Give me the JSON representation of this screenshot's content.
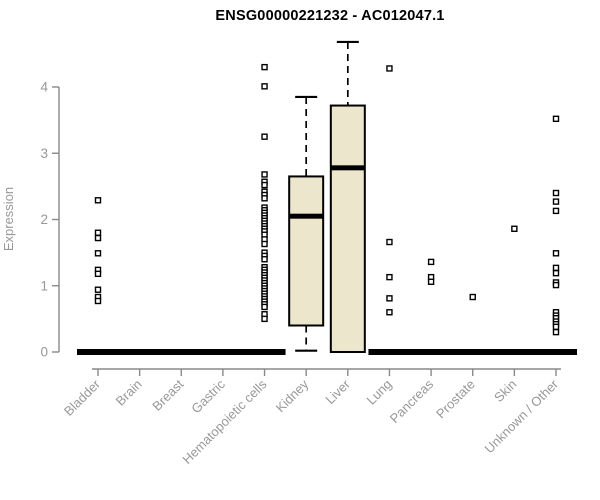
{
  "chart_data": {
    "type": "boxplot",
    "title": "ENSG00000221232 - AC012047.1",
    "xlabel": "",
    "ylabel": "Expression",
    "ylim": [
      0,
      4.8
    ],
    "yticks": [
      0,
      1,
      2,
      3,
      4
    ],
    "grid": false,
    "legend": "none",
    "categories": [
      "Bladder",
      "Brain",
      "Breast",
      "Gastric",
      "Hematopoietic cells",
      "Kidney",
      "Liver",
      "Lung",
      "Pancreas",
      "Prostate",
      "Skin",
      "Unknown / Other"
    ],
    "series": [
      {
        "name": "Bladder",
        "median": 0,
        "q1": 0,
        "q3": 0,
        "whisker_low": 0,
        "whisker_high": 0,
        "outliers": [
          2.29,
          1.8,
          1.72,
          1.49,
          1.24,
          1.18,
          0.94,
          0.83,
          0.77
        ]
      },
      {
        "name": "Brain",
        "median": 0,
        "q1": 0,
        "q3": 0,
        "whisker_low": 0,
        "whisker_high": 0,
        "outliers": []
      },
      {
        "name": "Breast",
        "median": 0,
        "q1": 0,
        "q3": 0,
        "whisker_low": 0,
        "whisker_high": 0,
        "outliers": []
      },
      {
        "name": "Gastric",
        "median": 0,
        "q1": 0,
        "q3": 0,
        "whisker_low": 0,
        "whisker_high": 0,
        "outliers": []
      },
      {
        "name": "Hematopoietic cells",
        "median": 0,
        "q1": 0,
        "q3": 0,
        "whisker_low": 0,
        "whisker_high": 0,
        "outliers": [
          4.3,
          4.01,
          3.25,
          2.68,
          2.57,
          2.52,
          2.42,
          2.37,
          2.32,
          2.18,
          2.14,
          2.1,
          2.06,
          2.02,
          1.98,
          1.94,
          1.9,
          1.86,
          1.82,
          1.77,
          1.7,
          1.63,
          1.5,
          1.45,
          1.4,
          1.28,
          1.24,
          1.2,
          1.16,
          1.12,
          1.08,
          1.04,
          1.0,
          0.96,
          0.92,
          0.88,
          0.84,
          0.8,
          0.76,
          0.72,
          0.68,
          0.57,
          0.5
        ]
      },
      {
        "name": "Kidney",
        "median": 2.05,
        "q1": 0.4,
        "q3": 2.65,
        "whisker_low": 0.02,
        "whisker_high": 3.85,
        "outliers": []
      },
      {
        "name": "Liver",
        "median": 2.78,
        "q1": 0.0,
        "q3": 3.72,
        "whisker_low": null,
        "whisker_high": 4.68,
        "outliers": []
      },
      {
        "name": "Lung",
        "median": 0,
        "q1": 0,
        "q3": 0,
        "whisker_low": 0,
        "whisker_high": 0,
        "outliers": [
          4.28,
          1.66,
          1.13,
          0.81,
          0.6
        ]
      },
      {
        "name": "Pancreas",
        "median": 0,
        "q1": 0,
        "q3": 0,
        "whisker_low": 0,
        "whisker_high": 0,
        "outliers": [
          1.36,
          1.13,
          1.06
        ]
      },
      {
        "name": "Prostate",
        "median": 0,
        "q1": 0,
        "q3": 0,
        "whisker_low": 0,
        "whisker_high": 0,
        "outliers": [
          0.83
        ]
      },
      {
        "name": "Skin",
        "median": 0,
        "q1": 0,
        "q3": 0,
        "whisker_low": 0,
        "whisker_high": 0,
        "outliers": [
          1.86
        ]
      },
      {
        "name": "Unknown / Other",
        "median": 0,
        "q1": 0,
        "q3": 0,
        "whisker_low": 0,
        "whisker_high": 0,
        "outliers": [
          3.52,
          2.4,
          2.27,
          2.13,
          1.49,
          1.27,
          1.19,
          1.05,
          1.01,
          0.6,
          0.55,
          0.51,
          0.46,
          0.42,
          0.38,
          0.3
        ]
      }
    ],
    "colors": {
      "box_fill": "#ece6cd",
      "box_border": "#000000",
      "median": "#000000",
      "outlier_stroke": "#000000",
      "outlier_fill": "#ffffff",
      "axis": "#898989",
      "tick_label": "#989898",
      "title": "#000000",
      "background": "#ffffff"
    }
  }
}
